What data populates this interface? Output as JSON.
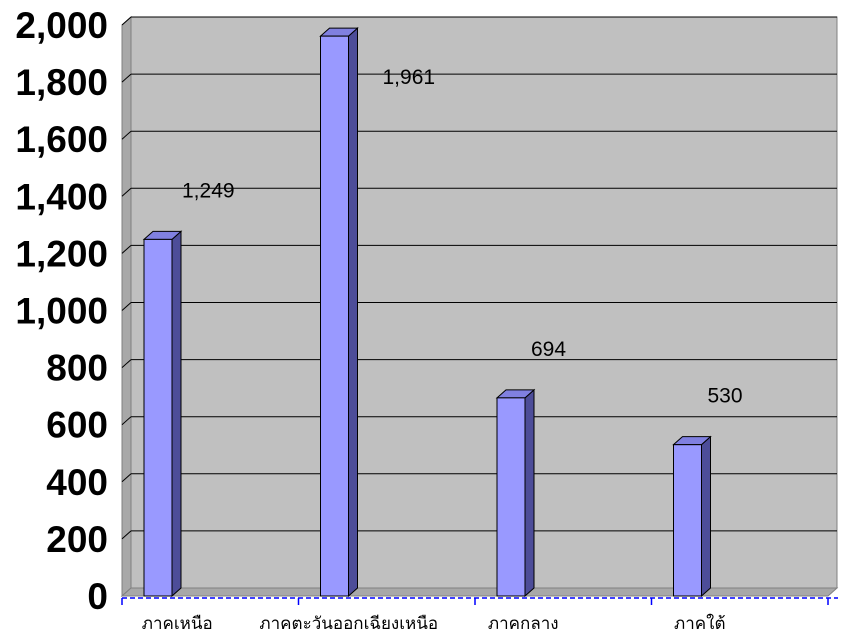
{
  "chart_data": {
    "type": "bar",
    "title": "",
    "xlabel": "",
    "ylabel": "",
    "categories": [
      "ภาคเหนือ",
      "ภาคตะวันออกเฉียงเหนือ",
      "ภาคกลาง",
      "ภาคใต้"
    ],
    "values": [
      1249,
      1961,
      694,
      530
    ],
    "value_labels": [
      "1,249",
      "1,961",
      "694",
      "530"
    ],
    "ylim": [
      0,
      2000
    ],
    "yticks": [
      0,
      200,
      400,
      600,
      800,
      1000,
      1200,
      1400,
      1600,
      1800,
      2000
    ],
    "ytick_labels": [
      "0",
      "200",
      "400",
      "600",
      "800",
      "1,000",
      "1,200",
      "1,400",
      "1,600",
      "1,800",
      "2,000"
    ],
    "grid": true,
    "legend": "none",
    "three_d": true,
    "colors": {
      "plot_background": "#c0c0c0",
      "bar_front": "#9999ff",
      "bar_side": "#4d4d99",
      "bar_top": "#8080e0",
      "gridline": "#000000",
      "x_axis": "#0000ff"
    }
  }
}
